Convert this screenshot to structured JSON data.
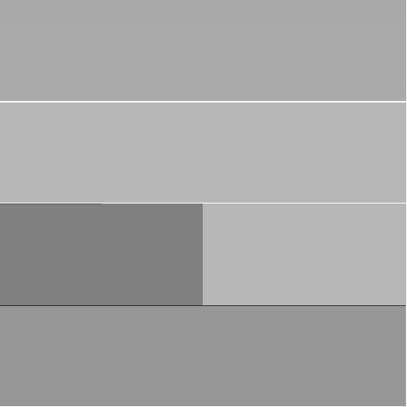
{
  "screen": {
    "background": "#b3b3b3",
    "blocks": [
      {
        "id": "block-a",
        "color": "#aaaaaa"
      },
      {
        "id": "block-b",
        "color": "#b7b7b7"
      },
      {
        "id": "block-c",
        "color": "#808080"
      },
      {
        "id": "block-d",
        "color": "#b7b7b7"
      },
      {
        "id": "block-e",
        "color": "#979797"
      }
    ]
  }
}
